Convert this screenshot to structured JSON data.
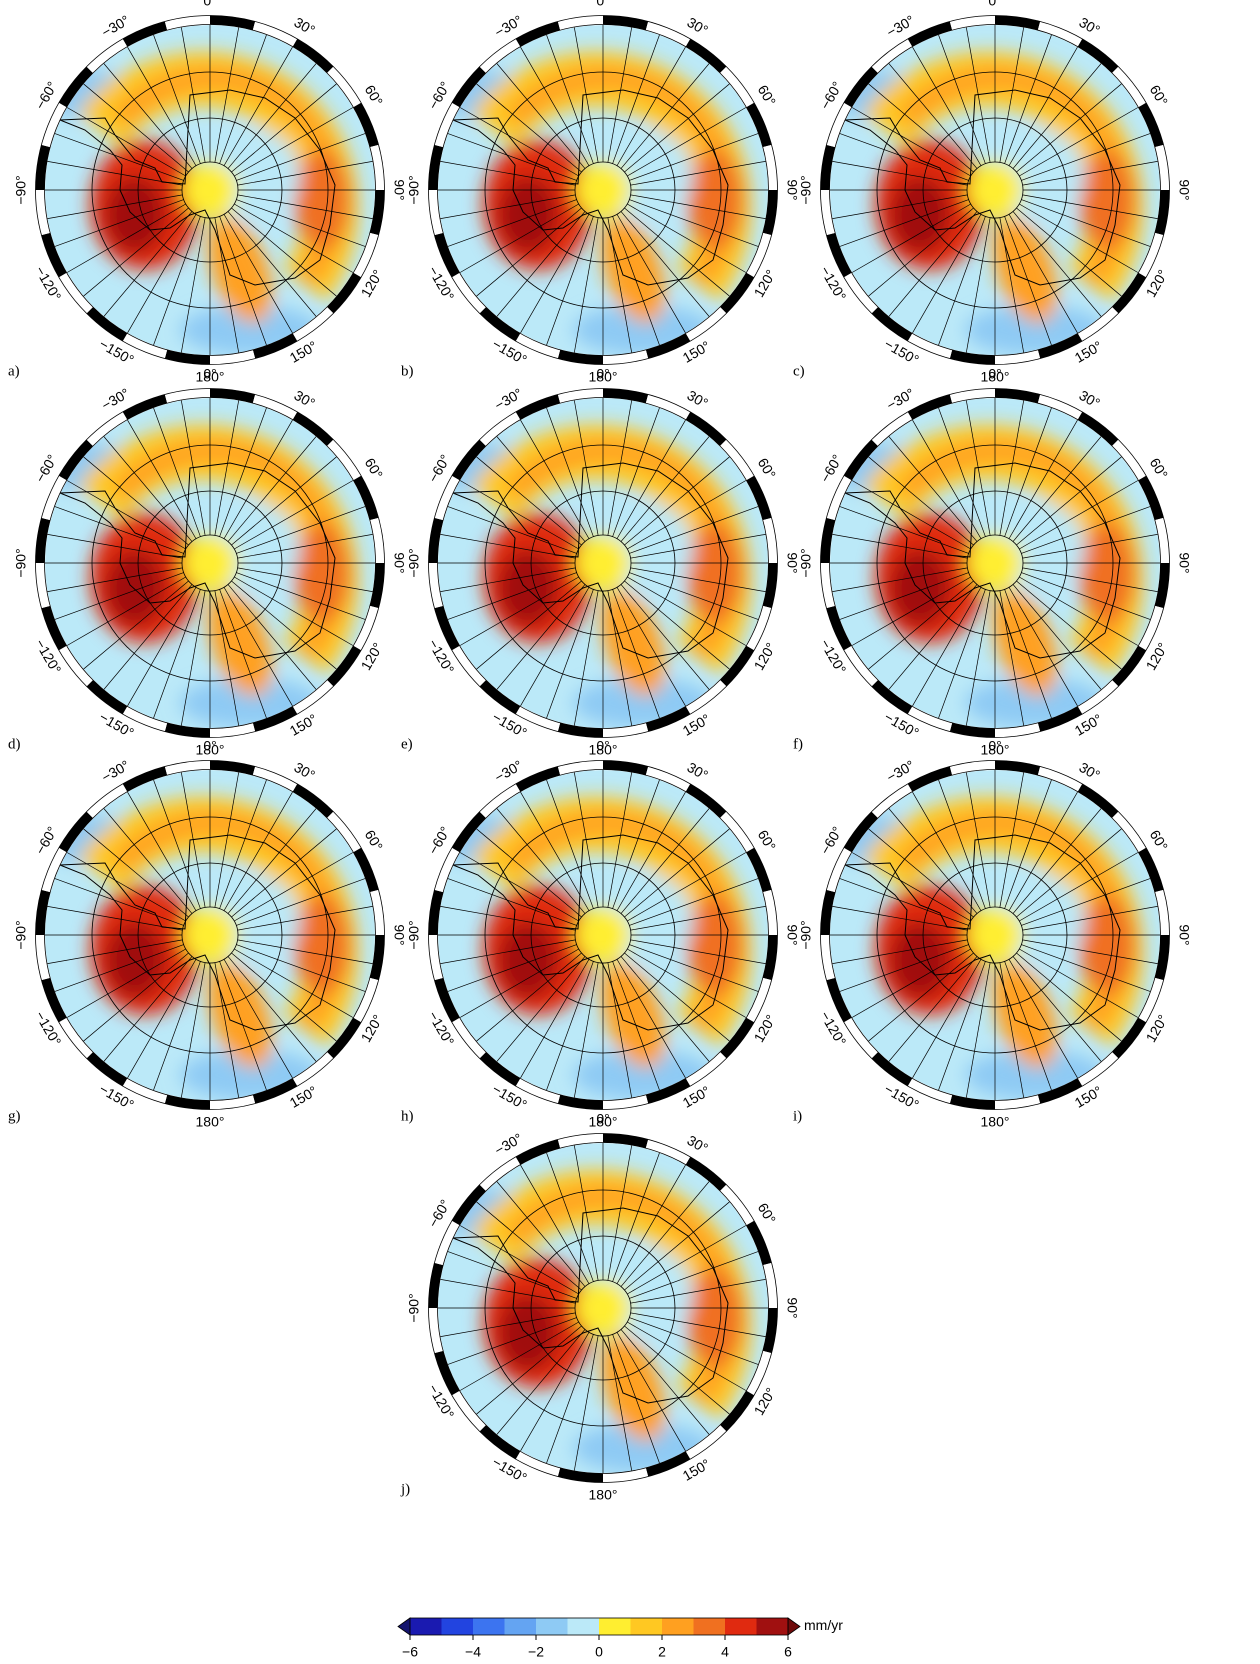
{
  "panels": [
    {
      "label": "a)"
    },
    {
      "label": "b)"
    },
    {
      "label": "c)"
    },
    {
      "label": "d)"
    },
    {
      "label": "e)"
    },
    {
      "label": "f)"
    },
    {
      "label": "g)"
    },
    {
      "label": "h)"
    },
    {
      "label": "i)"
    },
    {
      "label": "j)"
    }
  ],
  "lon_ticks": [
    {
      "value": 0,
      "label": "0°"
    },
    {
      "value": 30,
      "label": "30°"
    },
    {
      "value": 60,
      "label": "60°"
    },
    {
      "value": 90,
      "label": "90°"
    },
    {
      "value": 120,
      "label": "120°"
    },
    {
      "value": 150,
      "label": "150°"
    },
    {
      "value": 180,
      "label": "180°"
    },
    {
      "value": -150,
      "label": "−150°"
    },
    {
      "value": -120,
      "label": "−120°"
    },
    {
      "value": -90,
      "label": "−90°"
    },
    {
      "value": -60,
      "label": "−60°"
    },
    {
      "value": -30,
      "label": "−30°"
    }
  ],
  "colorbar": {
    "clim": [
      -6,
      6
    ],
    "unit": "mm/yr",
    "ticks": [
      {
        "value": -6,
        "label": "−6"
      },
      {
        "value": -4,
        "label": "−4"
      },
      {
        "value": -2,
        "label": "−2"
      },
      0,
      2,
      4,
      6
    ],
    "colors": [
      "#1a1ab0",
      "#2244e0",
      "#3c74f0",
      "#64a4f2",
      "#8ecaf4",
      "#bbe9f8",
      "#ffee30",
      "#ffc822",
      "#ffa020",
      "#f07020",
      "#e02a10",
      "#a01010"
    ]
  }
}
